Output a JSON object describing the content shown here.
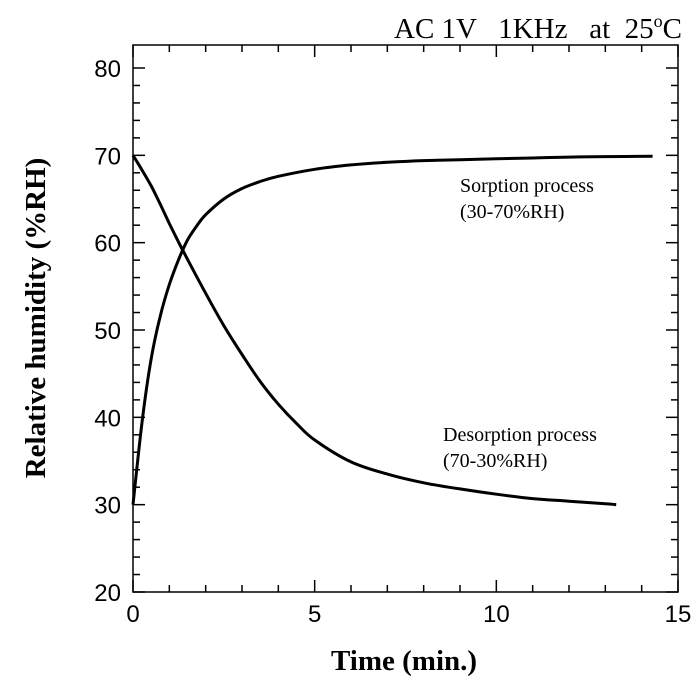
{
  "chart_data": {
    "type": "line",
    "title": "AC 1V   1KHz   at  25°C",
    "xlabel": "Time  (min.)",
    "ylabel": "Relative humidity (%RH)",
    "xlim": [
      0,
      15
    ],
    "ylim": [
      20,
      82
    ],
    "xticks": [
      "0",
      "5",
      "10",
      "15"
    ],
    "yticks": [
      "20",
      "30",
      "40",
      "50",
      "60",
      "70",
      "80"
    ],
    "grid": false,
    "series": [
      {
        "name": "Sorption process",
        "label_line2": "(30-70%RH)",
        "x": [
          0,
          0.25,
          0.5,
          0.75,
          1,
          1.25,
          1.5,
          1.75,
          2,
          2.5,
          3,
          3.5,
          4,
          5,
          6,
          7,
          8,
          9,
          10,
          11,
          12,
          13,
          14.3
        ],
        "y": [
          30,
          39.5,
          46.7,
          51.6,
          55.2,
          58.0,
          60.3,
          61.9,
          63.2,
          65.0,
          66.2,
          67.0,
          67.6,
          68.4,
          68.9,
          69.2,
          69.4,
          69.5,
          69.6,
          69.7,
          69.8,
          69.85,
          69.9
        ]
      },
      {
        "name": "Desorption process",
        "label_line2": "(70-30%RH)",
        "x": [
          0,
          0.25,
          0.5,
          0.75,
          1,
          1.25,
          1.5,
          2,
          2.5,
          3,
          3.5,
          4,
          4.5,
          5,
          6,
          7,
          8,
          9,
          10,
          11,
          12,
          13,
          13.3
        ],
        "y": [
          70,
          68.3,
          66.5,
          64.4,
          62.2,
          60.1,
          58.1,
          54.2,
          50.5,
          47.2,
          44.1,
          41.5,
          39.3,
          37.4,
          34.9,
          33.5,
          32.5,
          31.8,
          31.2,
          30.7,
          30.4,
          30.1,
          30.0
        ]
      }
    ]
  }
}
